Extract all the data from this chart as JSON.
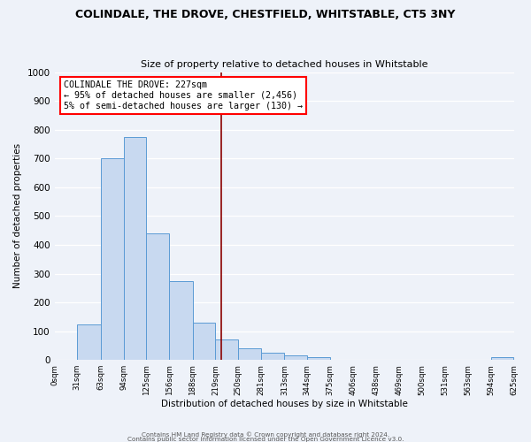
{
  "title_line1": "COLINDALE, THE DROVE, CHESTFIELD, WHITSTABLE, CT5 3NY",
  "title_line2": "Size of property relative to detached houses in Whitstable",
  "xlabel": "Distribution of detached houses by size in Whitstable",
  "ylabel": "Number of detached properties",
  "bar_edges": [
    0,
    31,
    63,
    94,
    125,
    156,
    188,
    219,
    250,
    281,
    313,
    344,
    375,
    406,
    438,
    469,
    500,
    531,
    563,
    594,
    625
  ],
  "bar_heights": [
    0,
    125,
    700,
    775,
    440,
    275,
    130,
    70,
    40,
    25,
    15,
    10,
    0,
    0,
    0,
    0,
    0,
    0,
    0,
    10
  ],
  "bar_color": "#c8d9f0",
  "bar_edge_color": "#5b9bd5",
  "redline_x": 227,
  "ylim": [
    0,
    1000
  ],
  "yticks": [
    0,
    100,
    200,
    300,
    400,
    500,
    600,
    700,
    800,
    900,
    1000
  ],
  "xtick_labels": [
    "0sqm",
    "31sqm",
    "63sqm",
    "94sqm",
    "125sqm",
    "156sqm",
    "188sqm",
    "219sqm",
    "250sqm",
    "281sqm",
    "313sqm",
    "344sqm",
    "375sqm",
    "406sqm",
    "438sqm",
    "469sqm",
    "500sqm",
    "531sqm",
    "563sqm",
    "594sqm",
    "625sqm"
  ],
  "annotation_title": "COLINDALE THE DROVE: 227sqm",
  "annotation_line1": "← 95% of detached houses are smaller (2,456)",
  "annotation_line2": "5% of semi-detached houses are larger (130) →",
  "footnote1": "Contains HM Land Registry data © Crown copyright and database right 2024.",
  "footnote2": "Contains public sector information licensed under the Open Government Licence v3.0.",
  "bg_color": "#eef2f9"
}
